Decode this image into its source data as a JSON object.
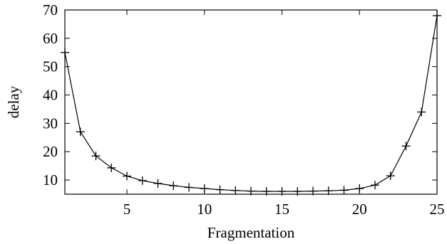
{
  "chart_data": {
    "type": "line",
    "title": "",
    "xlabel": "Fragmentation",
    "ylabel": "delay",
    "xlim": [
      1,
      25
    ],
    "ylim": [
      5,
      70
    ],
    "xticks": [
      5,
      10,
      15,
      20,
      25
    ],
    "yticks": [
      10,
      20,
      30,
      40,
      50,
      60,
      70
    ],
    "grid": false,
    "legend": "none",
    "marker": "plus",
    "line_color": "#000000",
    "series": [
      {
        "x": [
          1,
          2,
          3,
          4,
          5,
          6,
          7,
          8,
          9,
          10,
          11,
          12,
          13,
          14,
          15,
          16,
          17,
          18,
          19,
          20,
          21,
          22,
          23,
          24,
          25
        ],
        "values": [
          55,
          27,
          18.5,
          14.3,
          11.4,
          9.8,
          8.8,
          8,
          7.4,
          7,
          6.6,
          6.3,
          6.1,
          6,
          6,
          6,
          6.1,
          6.2,
          6.4,
          7,
          8.2,
          11.5,
          22,
          34,
          68
        ]
      }
    ]
  }
}
